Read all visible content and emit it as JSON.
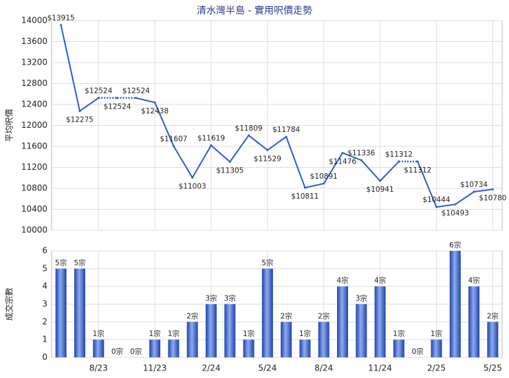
{
  "chart_data": {
    "title": "清水灣半島 - 實用呎價走勢",
    "categories": [
      null,
      null,
      "8/23",
      null,
      null,
      "11/23",
      null,
      null,
      "2/24",
      null,
      null,
      "5/24",
      null,
      null,
      "8/24",
      null,
      null,
      "11/24",
      null,
      null,
      "2/25",
      null,
      null,
      "5/25"
    ],
    "grid": true,
    "panels": [
      {
        "type": "line",
        "ylabel": "平均呎價",
        "color": "#2a5bd7",
        "values": [
          13915,
          12275,
          12524,
          12524,
          12524,
          12438,
          11607,
          11003,
          11619,
          11305,
          11809,
          11529,
          11784,
          10811,
          10891,
          11476,
          11336,
          10941,
          11312,
          11312,
          10444,
          10493,
          10734,
          10780
        ],
        "value_labels": [
          "$13915",
          "$12275",
          "$12524",
          "$12524",
          "$12524",
          "$12438",
          "$11607",
          "$11003",
          "$11619",
          "$11305",
          "$11809",
          "$11529",
          "$11784",
          "$10811",
          "$10891",
          "$11476",
          "$11336",
          "$10941",
          "$11312",
          "$11312",
          "$10444",
          "$10493",
          "$10734",
          "$10780"
        ],
        "ylim": [
          10000,
          14000
        ],
        "yticks": [
          10000,
          10400,
          10800,
          11200,
          11600,
          12000,
          12400,
          12800,
          13200,
          13600,
          14000
        ]
      },
      {
        "type": "bar",
        "ylabel": "成交宗數",
        "color": "#2f5fc9",
        "values": [
          5,
          5,
          1,
          0,
          0,
          1,
          1,
          2,
          3,
          3,
          1,
          5,
          2,
          1,
          2,
          4,
          3,
          4,
          1,
          0,
          1,
          6,
          4,
          2
        ],
        "value_labels": [
          "5宗",
          "5宗",
          "1宗",
          "0宗",
          "0宗",
          "1宗",
          "1宗",
          "2宗",
          "3宗",
          "3宗",
          "1宗",
          "5宗",
          "2宗",
          "1宗",
          "2宗",
          "4宗",
          "3宗",
          "4宗",
          "1宗",
          "0宗",
          "1宗",
          "6宗",
          "4宗",
          "2宗"
        ],
        "ylim": [
          0,
          6
        ],
        "yticks": [
          0,
          1,
          2,
          3,
          4,
          5,
          6
        ]
      }
    ]
  }
}
